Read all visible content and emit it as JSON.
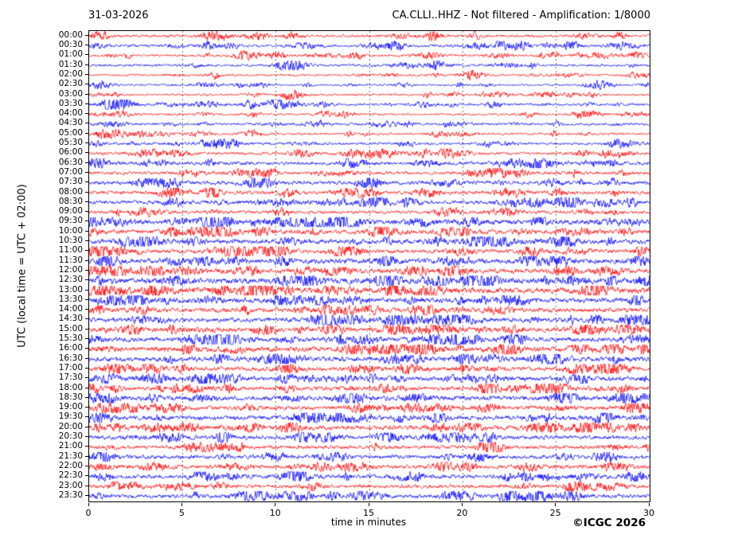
{
  "header": {
    "date": "31-03-2026",
    "title": "CA.CLLI..HHZ - Not filtered - Amplification: 1/8000"
  },
  "x_axis": {
    "label": "time in minutes",
    "ticks": [
      "0",
      "5",
      "10",
      "15",
      "20",
      "25",
      "30"
    ]
  },
  "y_axis": {
    "label": "UTC (local time = UTC + 02:00)"
  },
  "footer": {
    "copyright": "©ICGC 2026"
  },
  "chart_data": {
    "type": "line",
    "subtype": "helicorder-day-plot",
    "title": "CA.CLLI..HHZ - Not filtered - Amplification: 1/8000",
    "date": "31-03-2026",
    "xlabel": "time in minutes",
    "ylabel": "UTC (local time = UTC + 02:00)",
    "x_range_minutes": [
      0,
      30
    ],
    "x_ticks": [
      0,
      5,
      10,
      15,
      20,
      25,
      30
    ],
    "grid_minutes": [
      5,
      10,
      15,
      20,
      25
    ],
    "grid_style": "vertical dashed gray",
    "rows_per_day": 48,
    "minutes_per_row": 30,
    "trace_color_even": "#ff0000",
    "trace_color_odd": "#0000ff",
    "legend_position": "none",
    "rows": [
      {
        "time": "00:00",
        "color": "#ff0000",
        "amp": 1.4
      },
      {
        "time": "00:30",
        "color": "#0000ff",
        "amp": 1.4
      },
      {
        "time": "01:00",
        "color": "#ff0000",
        "amp": 1.2
      },
      {
        "time": "01:30",
        "color": "#0000ff",
        "amp": 1.3
      },
      {
        "time": "02:00",
        "color": "#ff0000",
        "amp": 1.1
      },
      {
        "time": "02:30",
        "color": "#0000ff",
        "amp": 1.0
      },
      {
        "time": "03:00",
        "color": "#ff0000",
        "amp": 1.1
      },
      {
        "time": "03:30",
        "color": "#0000ff",
        "amp": 1.3
      },
      {
        "time": "04:00",
        "color": "#ff0000",
        "amp": 1.1
      },
      {
        "time": "04:30",
        "color": "#0000ff",
        "amp": 1.3
      },
      {
        "time": "05:00",
        "color": "#ff0000",
        "amp": 1.1
      },
      {
        "time": "05:30",
        "color": "#0000ff",
        "amp": 1.4
      },
      {
        "time": "06:00",
        "color": "#ff0000",
        "amp": 1.5
      },
      {
        "time": "06:30",
        "color": "#0000ff",
        "amp": 1.8
      },
      {
        "time": "07:00",
        "color": "#ff0000",
        "amp": 1.6
      },
      {
        "time": "07:30",
        "color": "#0000ff",
        "amp": 1.9
      },
      {
        "time": "08:00",
        "color": "#ff0000",
        "amp": 1.9
      },
      {
        "time": "08:30",
        "color": "#0000ff",
        "amp": 1.9
      },
      {
        "time": "09:00",
        "color": "#ff0000",
        "amp": 1.6
      },
      {
        "time": "09:30",
        "color": "#0000ff",
        "amp": 2.6
      },
      {
        "time": "10:00",
        "color": "#ff0000",
        "amp": 2.3
      },
      {
        "time": "10:30",
        "color": "#0000ff",
        "amp": 2.3
      },
      {
        "time": "11:00",
        "color": "#ff0000",
        "amp": 2.0
      },
      {
        "time": "11:30",
        "color": "#0000ff",
        "amp": 2.6
      },
      {
        "time": "12:00",
        "color": "#ff0000",
        "amp": 2.3
      },
      {
        "time": "12:30",
        "color": "#0000ff",
        "amp": 3.0
      },
      {
        "time": "13:00",
        "color": "#ff0000",
        "amp": 3.0
      },
      {
        "time": "13:30",
        "color": "#0000ff",
        "amp": 2.6
      },
      {
        "time": "14:00",
        "color": "#ff0000",
        "amp": 2.3
      },
      {
        "time": "14:30",
        "color": "#0000ff",
        "amp": 2.3
      },
      {
        "time": "15:00",
        "color": "#ff0000",
        "amp": 2.3
      },
      {
        "time": "15:30",
        "color": "#0000ff",
        "amp": 2.3
      },
      {
        "time": "16:00",
        "color": "#ff0000",
        "amp": 2.6
      },
      {
        "time": "16:30",
        "color": "#0000ff",
        "amp": 2.6
      },
      {
        "time": "17:00",
        "color": "#ff0000",
        "amp": 2.0
      },
      {
        "time": "17:30",
        "color": "#0000ff",
        "amp": 2.3
      },
      {
        "time": "18:00",
        "color": "#ff0000",
        "amp": 2.0
      },
      {
        "time": "18:30",
        "color": "#0000ff",
        "amp": 2.3
      },
      {
        "time": "19:00",
        "color": "#ff0000",
        "amp": 2.0
      },
      {
        "time": "19:30",
        "color": "#0000ff",
        "amp": 2.3
      },
      {
        "time": "20:00",
        "color": "#ff0000",
        "amp": 2.3
      },
      {
        "time": "20:30",
        "color": "#0000ff",
        "amp": 2.0
      },
      {
        "time": "21:00",
        "color": "#ff0000",
        "amp": 1.8
      },
      {
        "time": "21:30",
        "color": "#0000ff",
        "amp": 2.0
      },
      {
        "time": "22:00",
        "color": "#ff0000",
        "amp": 2.0
      },
      {
        "time": "22:30",
        "color": "#0000ff",
        "amp": 2.0
      },
      {
        "time": "23:00",
        "color": "#ff0000",
        "amp": 1.8
      },
      {
        "time": "23:30",
        "color": "#0000ff",
        "amp": 2.0
      }
    ]
  }
}
